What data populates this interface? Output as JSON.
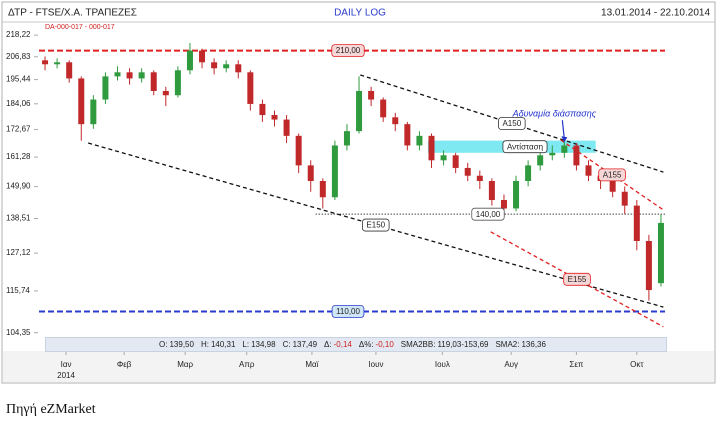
{
  "header": {
    "title": "ΔΤΡ - FTSE/Χ.Α. ΤΡΑΠΕΖΕΣ",
    "mode": "DAILY LOG",
    "range": "13.01.2014 - 22.10.2014",
    "code": "DA-000-017 - 000-017"
  },
  "chart_data": {
    "type": "candlestick",
    "log_scale": true,
    "x": [
      0,
      1,
      2,
      3,
      4,
      5,
      6,
      7,
      8,
      9,
      10,
      11,
      12,
      13,
      14,
      15,
      16,
      17,
      18,
      19,
      20,
      21,
      22,
      23,
      24,
      25,
      26,
      27,
      28,
      29,
      30,
      31,
      32,
      33,
      34,
      35,
      36,
      37,
      38,
      39,
      40,
      41,
      42,
      43,
      44,
      45,
      46,
      47,
      48,
      49,
      50,
      51
    ],
    "open": [
      205,
      203,
      204,
      196,
      175,
      186,
      197,
      199,
      196,
      199,
      190,
      188,
      200,
      210,
      204,
      201,
      203,
      199,
      184,
      179,
      177,
      170,
      158,
      152,
      146,
      166,
      172,
      190,
      186,
      178,
      175,
      166,
      170,
      160,
      162,
      157,
      154,
      152,
      145,
      142,
      152,
      158,
      162,
      163,
      166,
      158,
      154,
      152,
      148,
      143,
      131,
      118
    ],
    "high": [
      207,
      206,
      205,
      197,
      188,
      199,
      202,
      201,
      201,
      200,
      192,
      202,
      214,
      211,
      206,
      205,
      205,
      200,
      186,
      181,
      179,
      171,
      160,
      153,
      168,
      175,
      197,
      192,
      187,
      180,
      176,
      172,
      171,
      164,
      163,
      159,
      156,
      153,
      147,
      154,
      160,
      164,
      166,
      168,
      167,
      160,
      156,
      154,
      150,
      145,
      133,
      140
    ],
    "low": [
      200,
      201,
      194,
      168,
      173,
      184,
      195,
      193,
      194,
      188,
      183,
      187,
      198,
      201,
      198,
      199,
      196,
      181,
      176,
      174,
      167,
      155,
      148,
      142,
      145,
      164,
      171,
      183,
      176,
      172,
      164,
      164,
      157,
      158,
      155,
      152,
      149,
      143,
      140,
      141,
      150,
      156,
      160,
      161,
      156,
      152,
      149,
      146,
      140,
      128,
      113,
      117
    ],
    "close": [
      203,
      204,
      196,
      175,
      186,
      197,
      199,
      196,
      199,
      190,
      188,
      200,
      210,
      204,
      201,
      203,
      199,
      184,
      179,
      177,
      170,
      158,
      152,
      146,
      166,
      172,
      190,
      186,
      178,
      175,
      166,
      170,
      160,
      162,
      157,
      154,
      152,
      145,
      142,
      152,
      158,
      162,
      163,
      166,
      158,
      154,
      152,
      148,
      143,
      131,
      116,
      137
    ],
    "up_color": "#2f9a3e",
    "down_color": "#c0282a",
    "xlim": [
      -0.5,
      51.5
    ],
    "xticks": [
      {
        "value": 1.74,
        "label": "Ιαν"
      },
      {
        "value": 6.55,
        "label": "Φεβ"
      },
      {
        "value": 11.6,
        "label": "Μαρ"
      },
      {
        "value": 16.7,
        "label": "Απρ"
      },
      {
        "value": 22.1,
        "label": "Μαϊ"
      },
      {
        "value": 27.4,
        "label": "Ιουν"
      },
      {
        "value": 32.9,
        "label": "Ιουλ"
      },
      {
        "value": 38.6,
        "label": "Αυγ"
      },
      {
        "value": 44.0,
        "label": "Σεπ"
      },
      {
        "value": 49.0,
        "label": "Οκτ"
      }
    ],
    "x_year_label": "2014",
    "ylim": [
      103,
      221
    ],
    "yticks": [
      {
        "value": 218.22,
        "label": "218,22"
      },
      {
        "value": 206.83,
        "label": "206,83"
      },
      {
        "value": 195.44,
        "label": "195,44"
      },
      {
        "value": 184.06,
        "label": "184,06"
      },
      {
        "value": 172.67,
        "label": "172,67"
      },
      {
        "value": 161.28,
        "label": "161,28"
      },
      {
        "value": 149.9,
        "label": "149,90"
      },
      {
        "value": 138.51,
        "label": "138,51"
      },
      {
        "value": 127.12,
        "label": "127,12"
      },
      {
        "value": 115.74,
        "label": "115,74"
      },
      {
        "value": 104.35,
        "label": "104,35"
      }
    ],
    "levels": [
      {
        "value": 210,
        "label": "210,00",
        "color": "#dd2222",
        "from": -0.5,
        "box": "#f6d6d6"
      },
      {
        "value": 110,
        "label": "110,00",
        "color": "#2a3ccc",
        "from": -0.5,
        "box": "#cfe6f7"
      },
      {
        "value": 140,
        "label": "140,00",
        "color": "#444444",
        "from": 22.4,
        "box": "#ffffff"
      }
    ],
    "trendlines": [
      {
        "label": "Ε150",
        "color": "#111111",
        "points": [
          [
            3.57,
            167.0
          ],
          [
            51.2,
            111.2
          ]
        ],
        "box": "#ffffff"
      },
      {
        "label": "Α150",
        "color": "#111111",
        "points": [
          [
            26.1,
            197.7
          ],
          [
            51.2,
            155.4
          ]
        ],
        "box": "#ffffff"
      },
      {
        "label": "Ε155",
        "color": "#e02020",
        "points": [
          [
            36.9,
            134.0
          ],
          [
            51.2,
            105.9
          ]
        ],
        "box": "#f6d6d6"
      },
      {
        "label": "Α155",
        "color": "#e02020",
        "points": [
          [
            42.7,
            168.3
          ],
          [
            51.2,
            141.5
          ]
        ],
        "box": "#f6d6d6"
      }
    ],
    "zone": {
      "label": "Αντίσταση",
      "x": [
        31.7,
        45.6
      ],
      "y": [
        163,
        168
      ],
      "color": "#7fe9f2"
    },
    "callout": {
      "text": "Αδυναμία διάσπασης",
      "color": "#2233cc",
      "point": [
        43.0,
        166.5
      ]
    }
  },
  "info_bar": [
    {
      "key": "O:",
      "text": "139,50"
    },
    {
      "key": "H:",
      "text": "140,31"
    },
    {
      "key": "L:",
      "text": "134,98"
    },
    {
      "key": "C:",
      "text": "137,49"
    },
    {
      "key": "Δ:",
      "text": "-0,14"
    },
    {
      "key": "Δ%:",
      "text": "-0,10"
    },
    {
      "key": "SMA2BB:",
      "text": "119,03-153,69"
    },
    {
      "key": "SMA2:",
      "text": "136,36"
    }
  ],
  "footer": "Πηγή eZMarket"
}
